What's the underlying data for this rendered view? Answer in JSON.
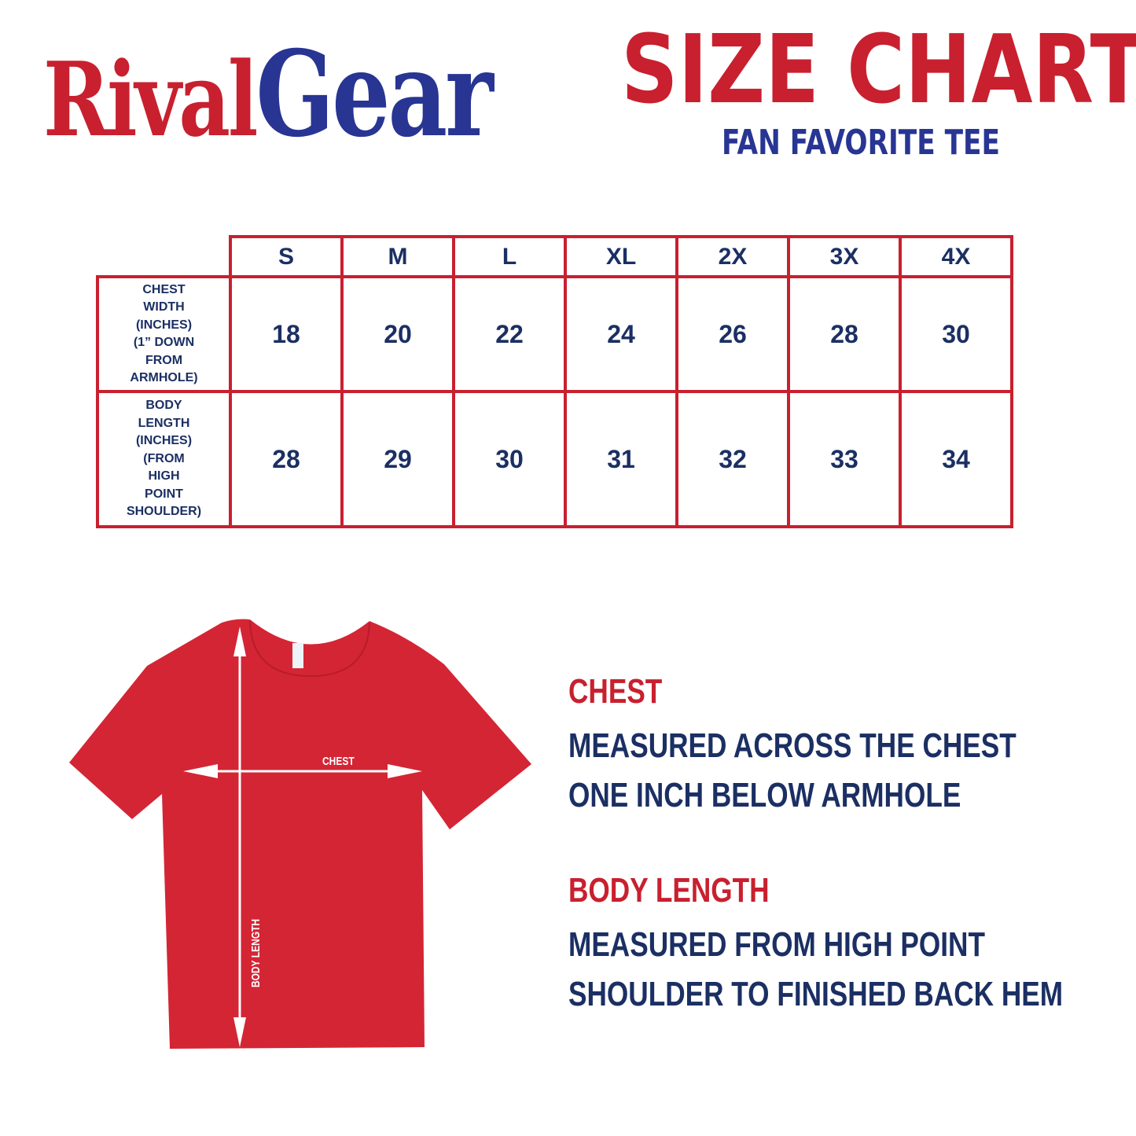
{
  "brand": {
    "part1": "Rival",
    "part2": "Gear"
  },
  "header": {
    "title": "SIZE CHART",
    "subtitle": "FAN FAVORITE TEE"
  },
  "colors": {
    "red": "#c8202f",
    "blue": "#283593",
    "navy": "#1b2f63",
    "shirt": "#d42535"
  },
  "table": {
    "sizes": [
      "S",
      "M",
      "L",
      "XL",
      "2X",
      "3X",
      "4X"
    ],
    "rows": [
      {
        "label": [
          "CHEST",
          "WIDTH",
          "(INCHES)",
          "(1” DOWN",
          "FROM",
          "ARMHOLE)"
        ],
        "values": [
          "18",
          "20",
          "22",
          "24",
          "26",
          "28",
          "30"
        ]
      },
      {
        "label": [
          "BODY",
          "LENGTH",
          "(INCHES)",
          "(FROM",
          "HIGH",
          "POINT",
          "SHOULDER)"
        ],
        "values": [
          "28",
          "29",
          "30",
          "31",
          "32",
          "33",
          "34"
        ]
      }
    ]
  },
  "diagram": {
    "chest_label": "CHEST",
    "length_label": "BODY LENGTH"
  },
  "sections": [
    {
      "heading": "CHEST",
      "lines": [
        "MEASURED ACROSS THE CHEST",
        "ONE INCH BELOW ARMHOLE"
      ]
    },
    {
      "heading": "BODY LENGTH",
      "lines": [
        "MEASURED FROM HIGH POINT",
        "SHOULDER TO FINISHED BACK HEM"
      ]
    }
  ]
}
